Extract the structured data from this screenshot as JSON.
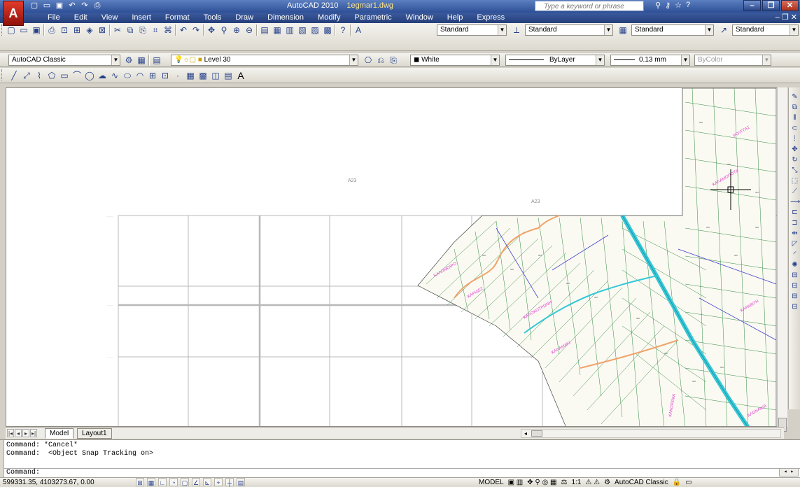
{
  "app": {
    "logo_letter": "A",
    "title": "AutoCAD 2010",
    "file_name": "1egmar1.dwg",
    "search_placeholder": "Type a keyword or phrase",
    "qat_icons": [
      "new-icon",
      "open-icon",
      "save-icon",
      "undo-icon",
      "redo-icon",
      "print-icon"
    ],
    "info_tools": [
      "binoculars-icon",
      "key-icon",
      "star-icon",
      "help-icon"
    ],
    "window_buttons": [
      "minimize",
      "restore",
      "close"
    ]
  },
  "menu": {
    "items": [
      "File",
      "Edit",
      "View",
      "Insert",
      "Format",
      "Tools",
      "Draw",
      "Dimension",
      "Modify",
      "Parametric",
      "Window",
      "Help",
      "Express"
    ]
  },
  "toolbar_standard": {
    "text_style": "Standard",
    "dim_style": "Standard",
    "table_style": "Standard",
    "multileader_style": "Standard"
  },
  "toolbar_layers": {
    "workspace": "AutoCAD Classic",
    "layer": "Level 30",
    "color": "White",
    "linetype": "ByLayer",
    "lineweight": "0.13 mm",
    "plotstyle": "ByColor"
  },
  "toolbar_draw": {
    "last_icon_letter": "A"
  },
  "drawing": {
    "label_a": "A23",
    "label_b": "A23"
  },
  "layout_tabs": {
    "model": "Model",
    "layout1": "Layout1"
  },
  "command": {
    "history": [
      "Command: *Cancel*",
      "Command:  <Object Snap Tracking on>"
    ],
    "prompt": "Command:"
  },
  "status": {
    "coordinates": "599331.35, 4103273.67, 0.00",
    "model_label": "MODEL",
    "annotation_scale": "1:1",
    "workspace": "AutoCAD Classic"
  },
  "colors": {
    "titlebar": "#2e4f96",
    "canvas_bg": "#ffffff",
    "parcel_lines": "#2f8a43",
    "river": "#33c8d6",
    "road": "#f0a36a",
    "labels": "#e040d0",
    "blue_lines": "#4040d0"
  }
}
